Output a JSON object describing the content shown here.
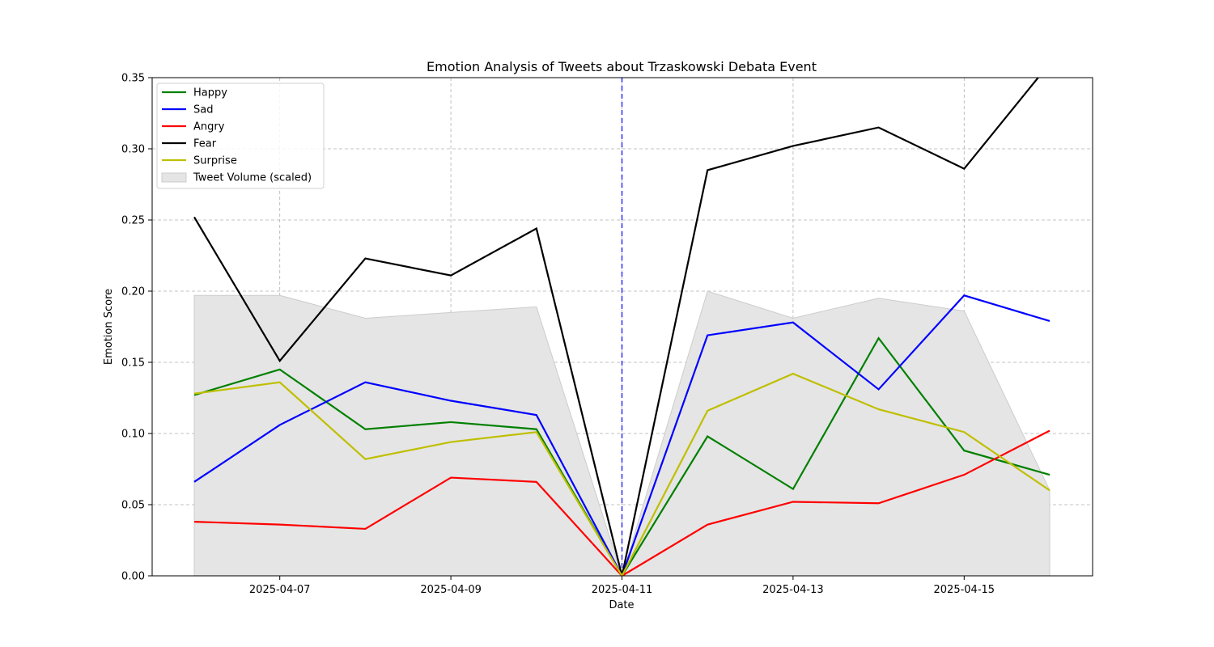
{
  "chart_data": {
    "type": "line",
    "title": "Emotion Analysis of Tweets about Trzaskowski Debata Event",
    "xlabel": "Date",
    "ylabel": "Emotion Score",
    "ylim": [
      0,
      0.35
    ],
    "yticks": [
      "0.00",
      "0.05",
      "0.10",
      "0.15",
      "0.20",
      "0.25",
      "0.30",
      "0.35"
    ],
    "x": [
      "2025-04-06",
      "2025-04-07",
      "2025-04-08",
      "2025-04-09",
      "2025-04-10",
      "2025-04-11",
      "2025-04-12",
      "2025-04-13",
      "2025-04-14",
      "2025-04-15",
      "2025-04-16"
    ],
    "xticks": [
      "2025-04-07",
      "2025-04-09",
      "2025-04-11",
      "2025-04-13",
      "2025-04-15"
    ],
    "event_date": "2025-04-11",
    "event_line_color": "#0000ff",
    "grid": true,
    "legend_position": "top-left",
    "series": [
      {
        "name": "Happy",
        "color": "#008000",
        "values": [
          0.127,
          0.145,
          0.103,
          0.108,
          0.103,
          0.0,
          0.098,
          0.061,
          0.167,
          0.088,
          0.071
        ]
      },
      {
        "name": "Sad",
        "color": "#0000ff",
        "values": [
          0.066,
          0.106,
          0.136,
          0.123,
          0.113,
          0.0,
          0.169,
          0.178,
          0.131,
          0.197,
          0.179
        ]
      },
      {
        "name": "Angry",
        "color": "#ff0000",
        "values": [
          0.038,
          0.036,
          0.033,
          0.069,
          0.066,
          0.0,
          0.036,
          0.052,
          0.051,
          0.071,
          0.102
        ]
      },
      {
        "name": "Fear",
        "color": "#000000",
        "values": [
          0.252,
          0.151,
          0.223,
          0.211,
          0.244,
          0.0,
          0.285,
          0.302,
          0.315,
          0.286,
          0.36
        ]
      },
      {
        "name": "Surprise",
        "color": "#bfbf00",
        "values": [
          0.128,
          0.136,
          0.082,
          0.094,
          0.101,
          0.0,
          0.116,
          0.142,
          0.117,
          0.101,
          0.06
        ]
      }
    ],
    "area": {
      "name": "Tweet Volume (scaled)",
      "color": "#e5e5e5",
      "values": [
        0.197,
        0.197,
        0.181,
        0.185,
        0.189,
        0.0,
        0.2,
        0.181,
        0.195,
        0.186,
        0.06
      ]
    }
  }
}
